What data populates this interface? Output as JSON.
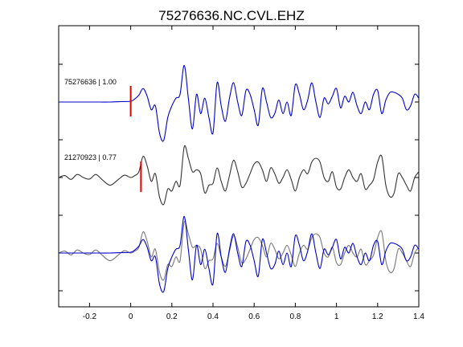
{
  "chart_data": {
    "type": "line",
    "title": "75276636.NC.CVL.EHZ",
    "xlabel": "",
    "ylabel": "",
    "xlim": [
      -0.35,
      1.4
    ],
    "x_ticks": [
      -0.2,
      0,
      0.2,
      0.4,
      0.6,
      0.8,
      1,
      1.2,
      1.4
    ],
    "x_tick_labels": [
      "-0.2",
      "0",
      "0.2",
      "0.4",
      "0.6",
      "0.8",
      "1",
      "1.2",
      "1.4"
    ],
    "y_tick_count": 7,
    "grid": false,
    "panels": [
      {
        "label": "75276636 | 1.00",
        "pick_time": 0.0,
        "pick_color": "#e00000",
        "series": [
          {
            "color": "#0000cc",
            "x": [
              -0.35,
              -0.3,
              -0.25,
              -0.2,
              -0.15,
              -0.1,
              -0.05,
              0.0,
              0.02,
              0.04,
              0.06,
              0.08,
              0.1,
              0.12,
              0.14,
              0.16,
              0.18,
              0.2,
              0.22,
              0.24,
              0.26,
              0.28,
              0.3,
              0.32,
              0.34,
              0.36,
              0.38,
              0.4,
              0.42,
              0.44,
              0.46,
              0.48,
              0.5,
              0.52,
              0.54,
              0.56,
              0.58,
              0.6,
              0.62,
              0.64,
              0.66,
              0.68,
              0.7,
              0.72,
              0.74,
              0.76,
              0.78,
              0.8,
              0.82,
              0.84,
              0.86,
              0.88,
              0.9,
              0.92,
              0.94,
              0.96,
              0.98,
              1.0,
              1.02,
              1.04,
              1.06,
              1.08,
              1.1,
              1.12,
              1.14,
              1.16,
              1.18,
              1.2,
              1.22,
              1.24,
              1.26,
              1.28,
              1.3,
              1.32,
              1.34,
              1.36,
              1.38,
              1.4
            ],
            "y": [
              0,
              0,
              0,
              0,
              0,
              0,
              0.01,
              0.02,
              0.08,
              0.18,
              0.35,
              0.15,
              -0.2,
              -0.1,
              -0.8,
              -1.0,
              -0.4,
              -0.1,
              0.1,
              0.2,
              0.95,
              0.1,
              -0.7,
              0.2,
              -0.3,
              0.1,
              -0.4,
              -0.8,
              0.5,
              -0.1,
              -0.5,
              0.1,
              0.5,
              0.0,
              -0.35,
              0.3,
              0.2,
              -0.2,
              -0.6,
              0.35,
              0.0,
              -0.4,
              -0.3,
              0.05,
              -0.3,
              0.0,
              -0.35,
              0.45,
              0.2,
              -0.2,
              0.05,
              0.5,
              0.0,
              -0.4,
              0.1,
              -0.05,
              0.15,
              0.35,
              -0.15,
              0.15,
              0.0,
              0.25,
              -0.1,
              -0.3,
              0.0,
              -0.2,
              0.2,
              0.3,
              -0.3,
              0.05,
              0.25,
              0.25,
              0.2,
              0.1,
              -0.2,
              -0.1,
              0.2,
              0.1
            ]
          }
        ]
      },
      {
        "label": "21270923 | 0.77",
        "pick_time": 0.05,
        "pick_color": "#e00000",
        "series": [
          {
            "color": "#333333",
            "x": [
              -0.35,
              -0.32,
              -0.29,
              -0.26,
              -0.23,
              -0.2,
              -0.17,
              -0.14,
              -0.1,
              -0.06,
              -0.03,
              0.0,
              0.02,
              0.04,
              0.06,
              0.08,
              0.1,
              0.12,
              0.14,
              0.16,
              0.18,
              0.2,
              0.22,
              0.24,
              0.26,
              0.28,
              0.3,
              0.32,
              0.34,
              0.36,
              0.38,
              0.4,
              0.42,
              0.44,
              0.46,
              0.48,
              0.5,
              0.52,
              0.54,
              0.56,
              0.58,
              0.6,
              0.62,
              0.64,
              0.66,
              0.68,
              0.7,
              0.72,
              0.74,
              0.76,
              0.78,
              0.8,
              0.82,
              0.84,
              0.86,
              0.88,
              0.9,
              0.92,
              0.94,
              0.96,
              0.98,
              1.0,
              1.02,
              1.04,
              1.06,
              1.08,
              1.1,
              1.12,
              1.14,
              1.16,
              1.18,
              1.2,
              1.22,
              1.24,
              1.26,
              1.28,
              1.3,
              1.32,
              1.34,
              1.36,
              1.38,
              1.4
            ],
            "y": [
              0,
              0.05,
              -0.05,
              0.08,
              0.0,
              -0.04,
              0.08,
              -0.05,
              -0.2,
              -0.05,
              0.06,
              0.0,
              0.05,
              0.15,
              0.55,
              0.3,
              -0.1,
              0.1,
              -0.5,
              -0.7,
              -0.3,
              -0.35,
              -0.1,
              -0.2,
              0.8,
              0.5,
              0.15,
              0.2,
              0.1,
              -0.4,
              -0.2,
              -0.15,
              0.25,
              -0.1,
              -0.35,
              0.05,
              0.45,
              0.15,
              -0.25,
              -0.15,
              0.1,
              0.35,
              0.4,
              0.2,
              -0.1,
              0.25,
              0.1,
              -0.15,
              0.0,
              0.2,
              -0.05,
              -0.35,
              0.0,
              0.2,
              0.1,
              0.4,
              0.5,
              0.4,
              0.0,
              -0.1,
              0.15,
              -0.25,
              -0.3,
              0.0,
              0.2,
              0.0,
              -0.1,
              0.1,
              -0.3,
              -0.2,
              -0.05,
              0.4,
              0.55,
              -0.2,
              -0.5,
              -0.4,
              0.1,
              0.0,
              -0.2,
              -0.35,
              0.0,
              0.15
            ]
          }
        ]
      },
      {
        "label": "",
        "series": [
          {
            "color": "#777777",
            "x": [
              -0.35,
              -0.32,
              -0.29,
              -0.26,
              -0.23,
              -0.2,
              -0.17,
              -0.14,
              -0.1,
              -0.06,
              -0.03,
              0.0,
              0.02,
              0.04,
              0.06,
              0.08,
              0.1,
              0.12,
              0.14,
              0.16,
              0.18,
              0.2,
              0.22,
              0.24,
              0.26,
              0.28,
              0.3,
              0.32,
              0.34,
              0.36,
              0.38,
              0.4,
              0.42,
              0.44,
              0.46,
              0.48,
              0.5,
              0.52,
              0.54,
              0.56,
              0.58,
              0.6,
              0.62,
              0.64,
              0.66,
              0.68,
              0.7,
              0.72,
              0.74,
              0.76,
              0.78,
              0.8,
              0.82,
              0.84,
              0.86,
              0.88,
              0.9,
              0.92,
              0.94,
              0.96,
              0.98,
              1.0,
              1.02,
              1.04,
              1.06,
              1.08,
              1.1,
              1.12,
              1.14,
              1.16,
              1.18,
              1.2,
              1.22,
              1.24,
              1.26,
              1.28,
              1.3,
              1.32,
              1.34,
              1.36,
              1.38,
              1.4
            ],
            "y": [
              0,
              0.05,
              -0.05,
              0.08,
              0.0,
              -0.04,
              0.08,
              -0.05,
              -0.2,
              -0.05,
              0.06,
              0.0,
              0.05,
              0.15,
              0.55,
              0.3,
              -0.1,
              0.1,
              -0.5,
              -0.7,
              -0.3,
              -0.35,
              -0.1,
              -0.2,
              0.8,
              0.5,
              0.15,
              0.2,
              0.1,
              -0.4,
              -0.2,
              -0.15,
              0.25,
              -0.1,
              -0.35,
              0.05,
              0.45,
              0.15,
              -0.25,
              -0.15,
              0.1,
              0.35,
              0.4,
              0.2,
              -0.1,
              0.25,
              0.1,
              -0.15,
              0.0,
              0.2,
              -0.05,
              -0.35,
              0.0,
              0.2,
              0.1,
              0.4,
              0.5,
              0.4,
              0.0,
              -0.1,
              0.15,
              -0.25,
              -0.3,
              0.0,
              0.2,
              0.0,
              -0.1,
              0.1,
              -0.3,
              -0.2,
              -0.05,
              0.4,
              0.55,
              -0.2,
              -0.5,
              -0.4,
              0.1,
              0.0,
              -0.2,
              -0.35,
              0.0,
              0.15
            ]
          },
          {
            "color": "#0000cc",
            "x": [
              -0.35,
              -0.3,
              -0.25,
              -0.2,
              -0.15,
              -0.1,
              -0.05,
              0.0,
              0.02,
              0.04,
              0.06,
              0.08,
              0.1,
              0.12,
              0.14,
              0.16,
              0.18,
              0.2,
              0.22,
              0.24,
              0.26,
              0.28,
              0.3,
              0.32,
              0.34,
              0.36,
              0.38,
              0.4,
              0.42,
              0.44,
              0.46,
              0.48,
              0.5,
              0.52,
              0.54,
              0.56,
              0.58,
              0.6,
              0.62,
              0.64,
              0.66,
              0.68,
              0.7,
              0.72,
              0.74,
              0.76,
              0.78,
              0.8,
              0.82,
              0.84,
              0.86,
              0.88,
              0.9,
              0.92,
              0.94,
              0.96,
              0.98,
              1.0,
              1.02,
              1.04,
              1.06,
              1.08,
              1.1,
              1.12,
              1.14,
              1.16,
              1.18,
              1.2,
              1.22,
              1.24,
              1.26,
              1.28,
              1.3,
              1.32,
              1.34,
              1.36,
              1.38,
              1.4
            ],
            "y": [
              0,
              0,
              0,
              0,
              0,
              0,
              0.01,
              0.02,
              0.08,
              0.18,
              0.35,
              0.15,
              -0.2,
              -0.1,
              -0.8,
              -1.0,
              -0.4,
              -0.1,
              0.1,
              0.2,
              0.95,
              0.1,
              -0.7,
              0.2,
              -0.3,
              0.1,
              -0.4,
              -0.8,
              0.5,
              -0.1,
              -0.5,
              0.1,
              0.5,
              0.0,
              -0.35,
              0.3,
              0.2,
              -0.2,
              -0.6,
              0.35,
              0.0,
              -0.4,
              -0.3,
              0.05,
              -0.3,
              0.0,
              -0.35,
              0.45,
              0.2,
              -0.2,
              0.05,
              0.5,
              0.0,
              -0.4,
              0.1,
              -0.05,
              0.15,
              0.35,
              -0.15,
              0.15,
              0.0,
              0.25,
              -0.1,
              -0.3,
              0.0,
              -0.2,
              0.2,
              0.3,
              -0.3,
              0.05,
              0.25,
              0.25,
              0.2,
              0.1,
              -0.2,
              -0.1,
              0.2,
              0.1
            ]
          }
        ]
      }
    ]
  }
}
